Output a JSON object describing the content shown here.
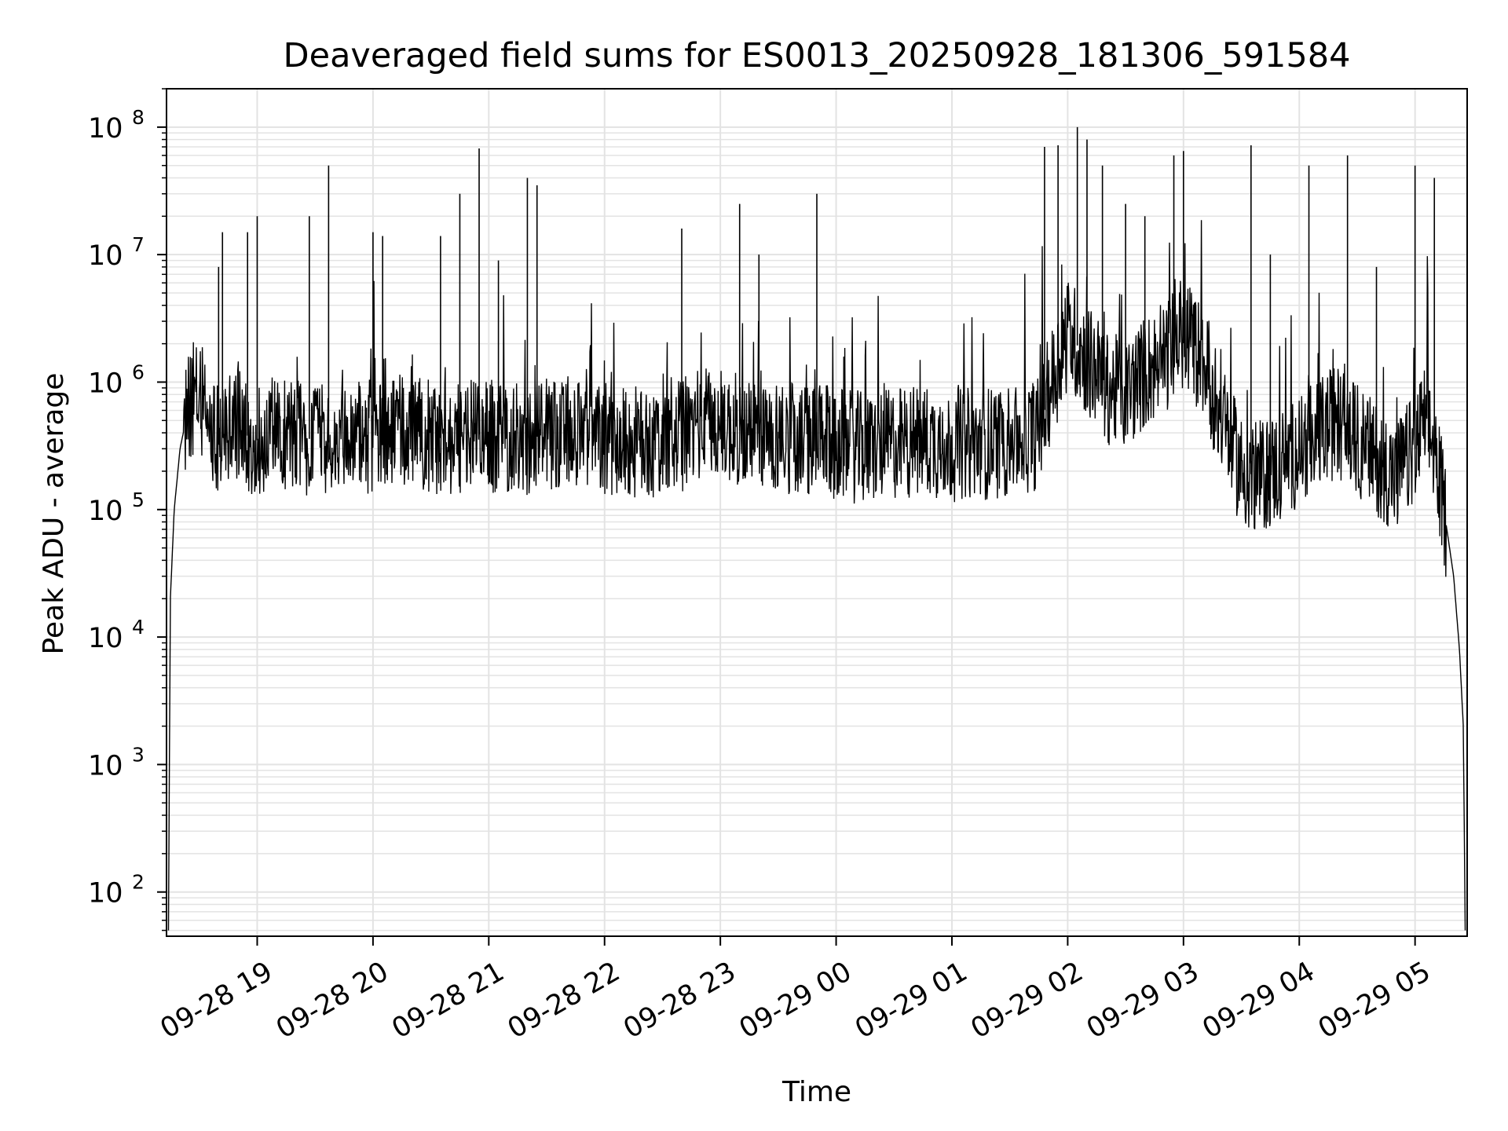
{
  "chart_data": {
    "type": "line",
    "title": "Deaveraged field sums for ES0013_20250928_181306_591584",
    "xlabel": "Time",
    "ylabel": "Peak ADU - average",
    "yscale": "log",
    "ylim": [
      45,
      200000000
    ],
    "xlim": [
      "09-28 18:13",
      "09-29 05:27"
    ],
    "grid": true,
    "x_ticks": [
      "09-28 19",
      "09-28 20",
      "09-28 21",
      "09-28 22",
      "09-28 23",
      "09-29 00",
      "09-29 01",
      "09-29 02",
      "09-29 03",
      "09-29 04",
      "09-29 05"
    ],
    "y_ticks": [
      {
        "value": 100,
        "base": "10",
        "exp": "2"
      },
      {
        "value": 1000,
        "base": "10",
        "exp": "3"
      },
      {
        "value": 10000,
        "base": "10",
        "exp": "4"
      },
      {
        "value": 100000,
        "base": "10",
        "exp": "5"
      },
      {
        "value": 1000000,
        "base": "10",
        "exp": "6"
      },
      {
        "value": 10000000,
        "base": "10",
        "exp": "7"
      },
      {
        "value": 100000000,
        "base": "10",
        "exp": "8"
      }
    ],
    "series": [
      {
        "color": "#000000",
        "x": [
          "09-28 18:14",
          "09-28 18:15",
          "09-28 18:17",
          "09-28 18:20",
          "09-28 18:25",
          "09-28 18:30",
          "09-28 18:35",
          "09-28 18:40",
          "09-28 18:45",
          "09-28 18:50",
          "09-28 18:55",
          "09-28 19:00",
          "09-28 19:10",
          "09-28 19:20",
          "09-28 19:30",
          "09-28 19:40",
          "09-28 19:50",
          "09-28 20:00",
          "09-28 20:10",
          "09-28 20:20",
          "09-28 20:30",
          "09-28 20:40",
          "09-28 20:50",
          "09-28 21:00",
          "09-28 21:15",
          "09-28 21:30",
          "09-28 21:45",
          "09-28 22:00",
          "09-28 22:15",
          "09-28 22:30",
          "09-28 22:40",
          "09-28 22:50",
          "09-28 23:00",
          "09-28 23:15",
          "09-28 23:30",
          "09-28 23:45",
          "09-29 00:00",
          "09-29 00:15",
          "09-29 00:30",
          "09-29 00:45",
          "09-29 01:00",
          "09-29 01:15",
          "09-29 01:30",
          "09-29 01:45",
          "09-29 01:50",
          "09-29 02:00",
          "09-29 02:10",
          "09-29 02:20",
          "09-29 02:30",
          "09-29 02:40",
          "09-29 02:50",
          "09-29 03:00",
          "09-29 03:10",
          "09-29 03:20",
          "09-29 03:30",
          "09-29 03:40",
          "09-29 03:50",
          "09-29 04:00",
          "09-29 04:10",
          "09-29 04:20",
          "09-29 04:30",
          "09-29 04:40",
          "09-29 04:50",
          "09-29 05:00",
          "09-29 05:05",
          "09-29 05:10",
          "09-29 05:15",
          "09-29 05:20",
          "09-29 05:23",
          "09-29 05:25",
          "09-29 05:26"
        ],
        "values": [
          50,
          20000,
          100000,
          300000,
          700000,
          800000,
          500000,
          350000,
          400000,
          450000,
          380000,
          350000,
          400000,
          380000,
          350000,
          330000,
          350000,
          380000,
          420000,
          400000,
          380000,
          350000,
          400000,
          380000,
          360000,
          380000,
          400000,
          350000,
          330000,
          340000,
          380000,
          500000,
          450000,
          400000,
          380000,
          350000,
          330000,
          300000,
          330000,
          350000,
          320000,
          330000,
          340000,
          400000,
          800000,
          2500000,
          1500000,
          900000,
          800000,
          1200000,
          1500000,
          2500000,
          1500000,
          500000,
          200000,
          180000,
          220000,
          300000,
          400000,
          500000,
          350000,
          250000,
          180000,
          300000,
          500000,
          300000,
          100000,
          30000,
          8000,
          2000,
          50
        ]
      }
    ],
    "spikes": [
      {
        "x": "09-28 18:40",
        "y": 8000000
      },
      {
        "x": "09-28 18:42",
        "y": 15000000
      },
      {
        "x": "09-28 18:55",
        "y": 15000000
      },
      {
        "x": "09-28 19:00",
        "y": 20000000
      },
      {
        "x": "09-28 19:27",
        "y": 20000000
      },
      {
        "x": "09-28 19:37",
        "y": 50000000
      },
      {
        "x": "09-28 20:00",
        "y": 15000000
      },
      {
        "x": "09-28 20:05",
        "y": 14000000
      },
      {
        "x": "09-28 20:35",
        "y": 14000000
      },
      {
        "x": "09-28 20:45",
        "y": 30000000
      },
      {
        "x": "09-28 20:55",
        "y": 68000000
      },
      {
        "x": "09-28 21:05",
        "y": 9000000
      },
      {
        "x": "09-28 21:20",
        "y": 40000000
      },
      {
        "x": "09-28 21:25",
        "y": 35000000
      },
      {
        "x": "09-28 22:40",
        "y": 16000000
      },
      {
        "x": "09-28 23:10",
        "y": 25000000
      },
      {
        "x": "09-28 23:20",
        "y": 10000000
      },
      {
        "x": "09-28 23:50",
        "y": 30000000
      },
      {
        "x": "09-29 01:48",
        "y": 70000000
      },
      {
        "x": "09-29 01:55",
        "y": 72000000
      },
      {
        "x": "09-29 02:05",
        "y": 100000000
      },
      {
        "x": "09-29 02:10",
        "y": 80000000
      },
      {
        "x": "09-29 02:18",
        "y": 50000000
      },
      {
        "x": "09-29 02:30",
        "y": 25000000
      },
      {
        "x": "09-29 02:40",
        "y": 20000000
      },
      {
        "x": "09-29 02:55",
        "y": 60000000
      },
      {
        "x": "09-29 03:00",
        "y": 65000000
      },
      {
        "x": "09-29 03:35",
        "y": 72000000
      },
      {
        "x": "09-29 03:45",
        "y": 10000000
      },
      {
        "x": "09-29 04:05",
        "y": 50000000
      },
      {
        "x": "09-29 04:25",
        "y": 60000000
      },
      {
        "x": "09-29 04:40",
        "y": 8000000
      },
      {
        "x": "09-29 05:00",
        "y": 50000000
      },
      {
        "x": "09-29 05:10",
        "y": 40000000
      }
    ]
  }
}
